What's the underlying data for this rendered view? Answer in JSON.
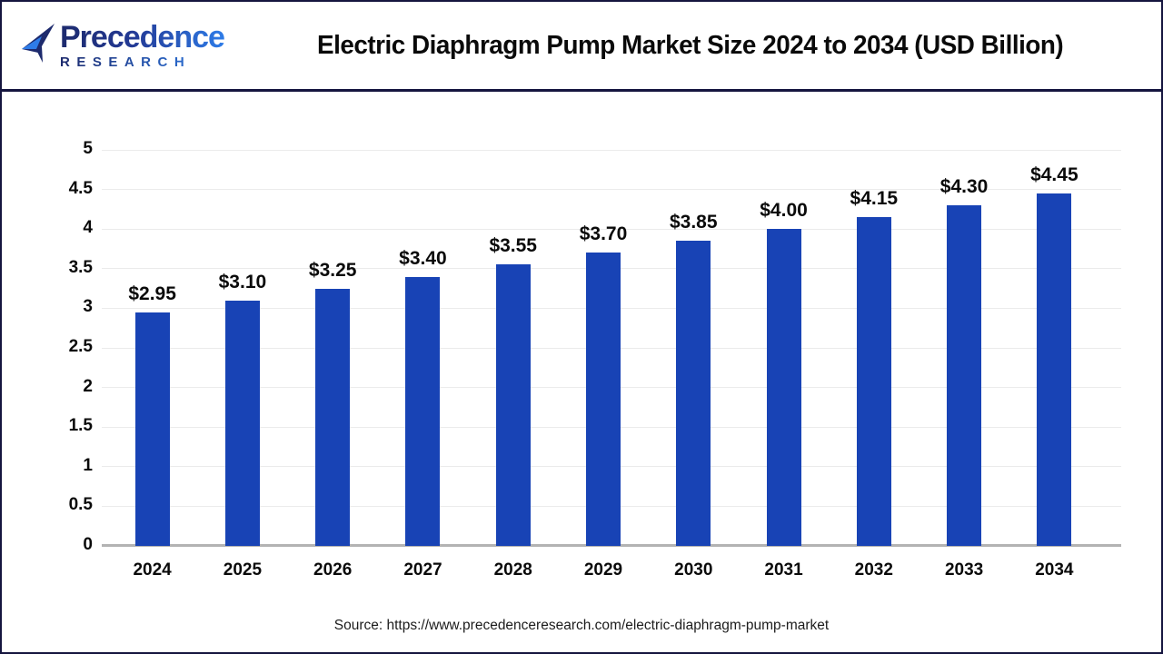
{
  "header": {
    "logo_line1": "Precedence",
    "logo_line2": "RESEARCH",
    "title": "Electric Diaphragm Pump Market Size 2024 to 2034 (USD Billion)"
  },
  "chart_data": {
    "type": "bar",
    "title": "Electric Diaphragm Pump Market Size 2024 to 2034 (USD Billion)",
    "categories": [
      "2024",
      "2025",
      "2026",
      "2027",
      "2028",
      "2029",
      "2030",
      "2031",
      "2032",
      "2033",
      "2034"
    ],
    "values": [
      2.95,
      3.1,
      3.25,
      3.4,
      3.55,
      3.7,
      3.85,
      4.0,
      4.15,
      4.3,
      4.45
    ],
    "bar_labels": [
      "$2.95",
      "$3.10",
      "$3.25",
      "$3.40",
      "$3.55",
      "$3.70",
      "$3.85",
      "$4.00",
      "$4.15",
      "$4.30",
      "$4.45"
    ],
    "xlabel": "",
    "ylabel": "",
    "ylim": [
      0,
      5
    ],
    "yticks": [
      0,
      0.5,
      1,
      1.5,
      2,
      2.5,
      3,
      3.5,
      4,
      4.5,
      5
    ],
    "ytick_labels": [
      "0",
      "0.5",
      "1",
      "1.5",
      "2",
      "2.5",
      "3",
      "3.5",
      "4",
      "4.5",
      "5"
    ],
    "grid": true,
    "legend": false,
    "bar_color": "#1843b5"
  },
  "footer": {
    "source": "Source: https://www.precedenceresearch.com/electric-diaphragm-pump-market"
  },
  "colors": {
    "bar": "#1843b5",
    "gridline": "#ebebeb",
    "axis_line": "#b3b3b3",
    "border_navy": "#15153f",
    "logo_navy": "#1d2a6d",
    "logo_blue": "#2e7ce8",
    "text": "#0a0a0a"
  }
}
